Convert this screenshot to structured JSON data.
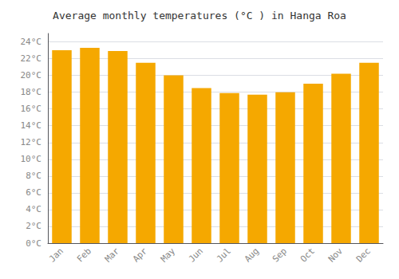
{
  "chart_data": {
    "type": "bar",
    "title": "Average monthly temperatures (°C ) in Hanga Roa",
    "categories": [
      "Jan",
      "Feb",
      "Mar",
      "Apr",
      "May",
      "Jun",
      "Jul",
      "Aug",
      "Sep",
      "Oct",
      "Nov",
      "Dec"
    ],
    "values": [
      23.0,
      23.3,
      22.9,
      21.5,
      20.0,
      18.5,
      17.9,
      17.7,
      18.0,
      19.0,
      20.2,
      21.5
    ],
    "color": "#F5A800",
    "ylim": [
      0,
      25
    ],
    "yticks": [
      {
        "value": 0,
        "label": "0°C"
      },
      {
        "value": 2,
        "label": "2°C"
      },
      {
        "value": 4,
        "label": "4°C"
      },
      {
        "value": 6,
        "label": "6°C"
      },
      {
        "value": 8,
        "label": "8°C"
      },
      {
        "value": 10,
        "label": "10°C"
      },
      {
        "value": 12,
        "label": "12°C"
      },
      {
        "value": 14,
        "label": "14°C"
      },
      {
        "value": 16,
        "label": "16°C"
      },
      {
        "value": 18,
        "label": "18°C"
      },
      {
        "value": 20,
        "label": "20°C"
      },
      {
        "value": 22,
        "label": "22°C"
      },
      {
        "value": 24,
        "label": "24°C"
      }
    ],
    "grid": true
  }
}
